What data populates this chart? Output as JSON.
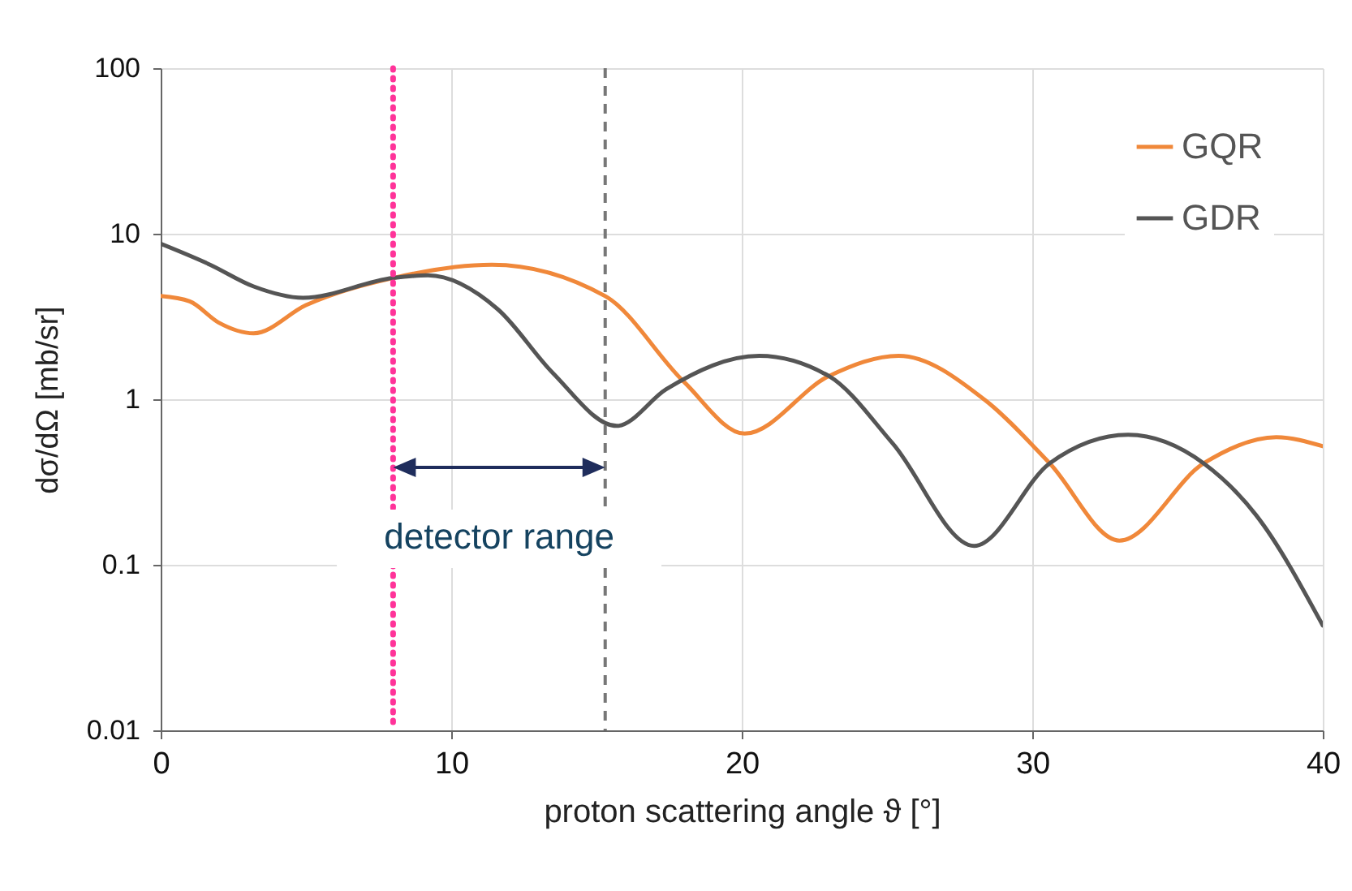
{
  "chart_data": {
    "type": "line",
    "xlabel": "proton scattering angle ϑ [°]",
    "ylabel": "dσ/dΩ [mb/sr]",
    "xlim": [
      0,
      40
    ],
    "xticks": [
      0,
      10,
      20,
      30,
      40
    ],
    "ylim": [
      0.01,
      100
    ],
    "yticks": [
      0.01,
      0.1,
      1,
      10,
      100
    ],
    "log": "y",
    "grid": true,
    "legend": "top right",
    "series": [
      {
        "name": "GQR",
        "color": "#f0883a",
        "x": [
          0,
          1,
          2,
          3.2,
          5,
          8,
          11.4,
          15.3,
          18,
          20.1,
          23,
          25.4,
          28.4,
          30.6,
          33,
          35.9,
          38.4,
          40
        ],
        "values": [
          4.2,
          3.9,
          2.9,
          2.5,
          3.7,
          5.4,
          6.5,
          4.2,
          1.28,
          0.62,
          1.38,
          1.83,
          0.98,
          0.41,
          0.14,
          0.41,
          0.59,
          0.52
        ]
      },
      {
        "name": "GDR",
        "color": "#555555",
        "x": [
          0,
          1.7,
          3.2,
          4.9,
          8,
          9.2,
          11.6,
          13.5,
          15.7,
          17.4,
          20.6,
          23,
          25.2,
          28,
          30.6,
          33.3,
          35.9,
          37.7,
          40
        ],
        "values": [
          8.7,
          6.5,
          4.8,
          4.1,
          5.4,
          5.6,
          3.5,
          1.44,
          0.69,
          1.15,
          1.83,
          1.38,
          0.54,
          0.13,
          0.41,
          0.61,
          0.41,
          0.2,
          0.043
        ]
      }
    ],
    "ref_lines": [
      {
        "axis": "x",
        "value": 8,
        "color": "#ff3399",
        "line_style": "dotted"
      },
      {
        "axis": "x",
        "value": 15.3,
        "color": "#777777",
        "line_style": "dashed"
      }
    ],
    "annotations": [
      "detector range"
    ]
  }
}
